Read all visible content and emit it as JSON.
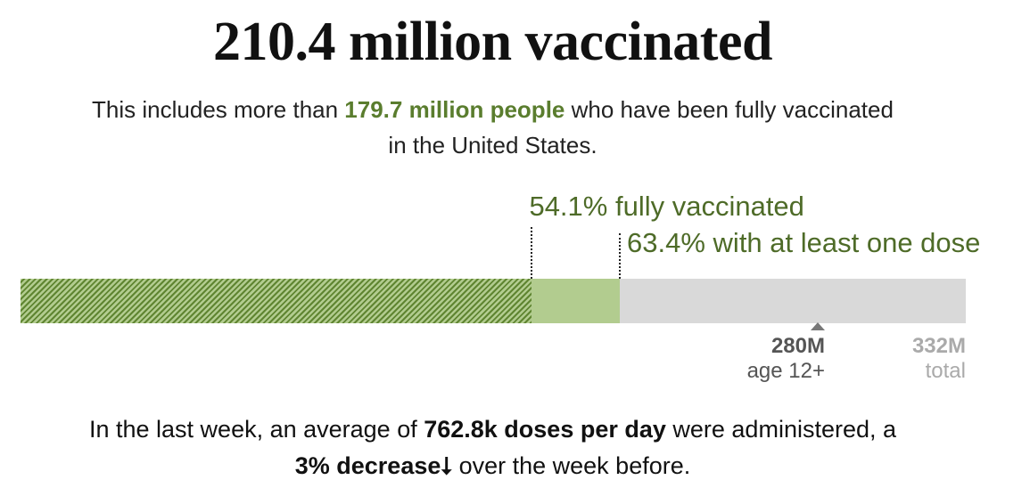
{
  "header": {
    "title": "210.4 million vaccinated",
    "subtitle_pre": "This includes more than ",
    "subtitle_highlight": "179.7 million people",
    "subtitle_post_line1": " who have been fully vaccinated",
    "subtitle_post_line2": "in the United States."
  },
  "chart_data": {
    "type": "bar",
    "orientation": "horizontal-stacked",
    "total": 332,
    "unit": "M",
    "series": [
      {
        "name": "fully vaccinated",
        "percent": 54.1,
        "label": "54.1% fully vaccinated",
        "color": "#5f8531",
        "pattern": "hatched"
      },
      {
        "name": "with at least one dose",
        "percent": 63.4,
        "label": "63.4% with at least one dose",
        "color": "#b2cc8f"
      }
    ],
    "remainder_color": "#d9d9d9",
    "ticks": [
      {
        "value": 280,
        "label": "280M",
        "caption": "age 12+",
        "marker": true
      },
      {
        "value": 332,
        "label": "332M",
        "caption": "total",
        "marker": false
      }
    ]
  },
  "footer": {
    "line1_pre": "In the last week, an average of ",
    "line1_bold": "762.8k doses per day",
    "line1_post": " were administered, a",
    "line2_bold": "3% decrease",
    "line2_arrow": "⭣",
    "line2_post": " over the week before."
  }
}
